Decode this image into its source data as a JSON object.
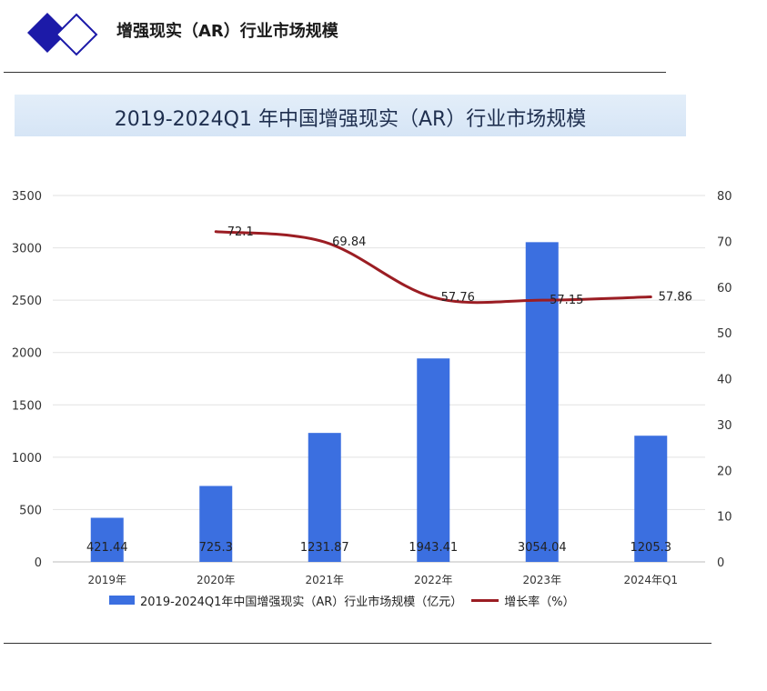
{
  "header": {
    "title": "增强现实（AR）行业市场规模"
  },
  "banner": {
    "title": "2019-2024Q1 年中国增强现实（AR）行业市场规模"
  },
  "colors": {
    "bar": "#3b6fe0",
    "line": "#9b1d23",
    "logo": "#1c1aa8"
  },
  "chart_data": {
    "type": "bar",
    "categories": [
      "2019年",
      "2020年",
      "2021年",
      "2022年",
      "2023年",
      "2024年Q1"
    ],
    "series": [
      {
        "name": "2019-2024Q1年中国增强现实（AR）行业市场规模（亿元）",
        "type": "bar",
        "axis": "left",
        "values": [
          421.44,
          725.3,
          1231.87,
          1943.41,
          3054.04,
          1205.3
        ],
        "labels": [
          "421.44",
          "725.3",
          "1231.87",
          "1943.41",
          "3054.04",
          "1205.3"
        ]
      },
      {
        "name": "增长率（%）",
        "type": "line",
        "axis": "right",
        "values": [
          null,
          72.1,
          69.84,
          57.76,
          57.15,
          57.86
        ],
        "labels": [
          "",
          "72.1",
          "69.84",
          "57.76",
          "57.15",
          "57.86"
        ]
      }
    ],
    "y_left": {
      "range": [
        0,
        3500
      ],
      "ticks": [
        "0",
        "500",
        "1000",
        "1500",
        "2000",
        "2500",
        "3000",
        "3500"
      ]
    },
    "y_right": {
      "range": [
        0,
        80
      ],
      "ticks": [
        "0",
        "10",
        "20",
        "30",
        "40",
        "50",
        "60",
        "70",
        "80"
      ]
    },
    "grid": true,
    "legend_position": "bottom"
  }
}
